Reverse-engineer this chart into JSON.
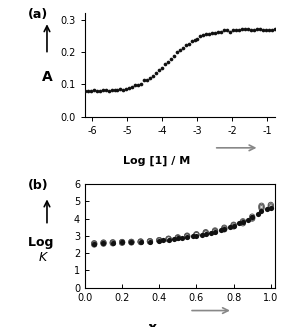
{
  "panel_a": {
    "label": "(a)",
    "xlabel": "Log [1] / M",
    "ylabel": "A",
    "xlim": [
      -6.2,
      -0.8
    ],
    "ylim": [
      0.0,
      0.32
    ],
    "xticks": [
      -6,
      -5,
      -4,
      -3,
      -2,
      -1
    ],
    "yticks": [
      0.0,
      0.1,
      0.2,
      0.3
    ],
    "sigmoid_x0": -3.8,
    "sigmoid_k": 1.0,
    "y_min": 0.078,
    "y_max": 0.27,
    "n_points": 65
  },
  "panel_b": {
    "label": "(b)",
    "xlabel": "χ",
    "ylabel": "Log K",
    "xlim": [
      0.0,
      1.02
    ],
    "ylim": [
      0,
      6
    ],
    "xticks": [
      0.0,
      0.2,
      0.4,
      0.6,
      0.8,
      1.0
    ],
    "yticks": [
      0,
      1,
      2,
      3,
      4,
      5,
      6
    ],
    "avg_x": [
      0.05,
      0.1,
      0.15,
      0.2,
      0.25,
      0.3,
      0.35,
      0.4,
      0.42,
      0.45,
      0.48,
      0.5,
      0.52,
      0.55,
      0.58,
      0.6,
      0.63,
      0.65,
      0.68,
      0.7,
      0.73,
      0.75,
      0.78,
      0.8,
      0.83,
      0.85,
      0.88,
      0.9,
      0.93,
      0.95,
      0.98,
      1.0
    ],
    "avg_y": [
      2.55,
      2.58,
      2.6,
      2.62,
      2.63,
      2.65,
      2.67,
      2.72,
      2.75,
      2.78,
      2.82,
      2.86,
      2.89,
      2.93,
      2.97,
      3.02,
      3.07,
      3.12,
      3.18,
      3.25,
      3.32,
      3.4,
      3.5,
      3.6,
      3.72,
      3.82,
      3.95,
      4.08,
      4.25,
      4.45,
      4.55,
      4.62
    ],
    "open_sets": [
      {
        "x": [
          0.05,
          0.1,
          0.15,
          0.2,
          0.25,
          0.3,
          0.35,
          0.4,
          0.45,
          0.5,
          0.55,
          0.6,
          0.65,
          0.7,
          0.75,
          0.8,
          0.85,
          0.9,
          0.95,
          1.0
        ],
        "y": [
          2.5,
          2.55,
          2.57,
          2.6,
          2.62,
          2.64,
          2.67,
          2.73,
          2.8,
          2.88,
          2.96,
          3.05,
          3.14,
          3.24,
          3.38,
          3.55,
          3.73,
          4.0,
          4.68,
          4.72
        ]
      },
      {
        "x": [
          0.05,
          0.1,
          0.15,
          0.2,
          0.25,
          0.3,
          0.35,
          0.4,
          0.45,
          0.5,
          0.55,
          0.6,
          0.65,
          0.7,
          0.75,
          0.8,
          0.85,
          0.9,
          0.95,
          1.0
        ],
        "y": [
          2.58,
          2.62,
          2.63,
          2.65,
          2.66,
          2.68,
          2.7,
          2.76,
          2.84,
          2.9,
          2.99,
          3.08,
          3.18,
          3.28,
          3.44,
          3.62,
          3.8,
          4.12,
          4.6,
          4.65
        ]
      },
      {
        "x": [
          0.05,
          0.1,
          0.15,
          0.2,
          0.25,
          0.3,
          0.35,
          0.4,
          0.45,
          0.5,
          0.55,
          0.6,
          0.65,
          0.7,
          0.75,
          0.8,
          0.85,
          0.9,
          0.95,
          1.0
        ],
        "y": [
          2.55,
          2.6,
          2.62,
          2.64,
          2.65,
          2.67,
          2.69,
          2.75,
          2.83,
          2.92,
          3.02,
          3.1,
          3.22,
          3.32,
          3.48,
          3.65,
          3.85,
          4.05,
          4.75,
          4.8
        ]
      }
    ]
  },
  "arrow_color": "#888888",
  "dot_color": "#111111",
  "bg_color": "#ffffff"
}
